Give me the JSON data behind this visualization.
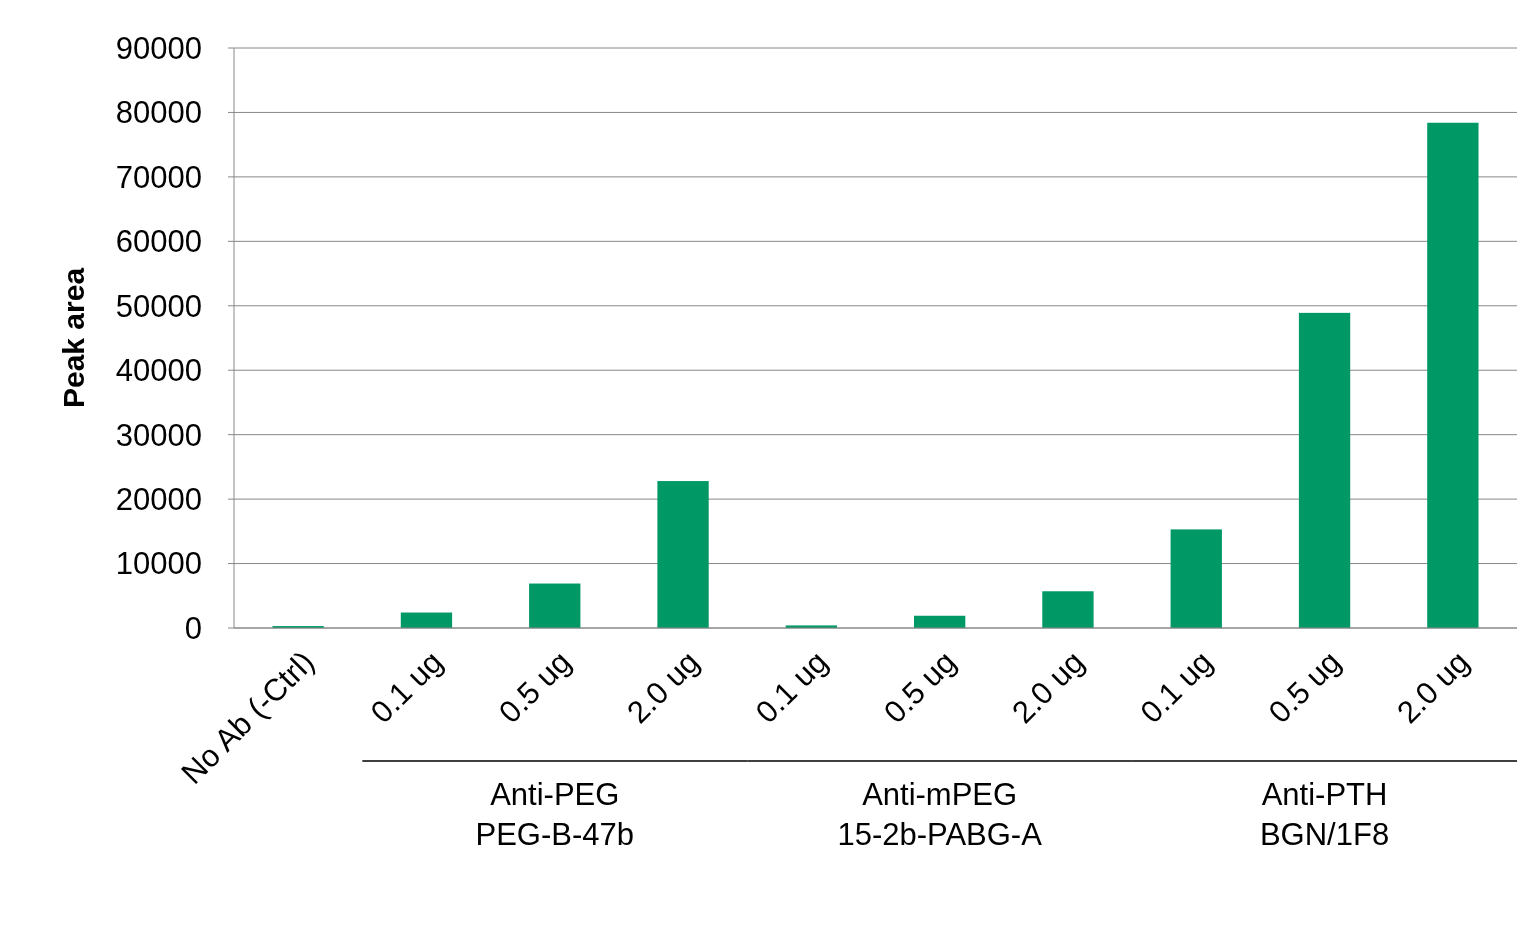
{
  "chart_data": {
    "type": "bar",
    "ylabel": "Peak area",
    "categories": [
      "No Ab (-Ctrl)",
      "0.1 ug",
      "0.5 ug",
      "2.0 ug",
      "0.1 ug",
      "0.5 ug",
      "2.0 ug",
      "0.1 ug",
      "0.5 ug",
      "2.0 ug"
    ],
    "values": [
      300,
      2400,
      6900,
      22800,
      400,
      1900,
      5700,
      15300,
      48900,
      78400
    ],
    "color": "#009966",
    "ylim": [
      0,
      90000
    ],
    "yticks": [
      0,
      10000,
      20000,
      30000,
      40000,
      50000,
      60000,
      70000,
      80000,
      90000
    ],
    "grid": "y",
    "annotations": [
      "Anti-PEG PEG-B-47b",
      "Anti-mPEG 15-2b-PABG-A",
      "Anti-PTH BGN/1F8"
    ]
  }
}
